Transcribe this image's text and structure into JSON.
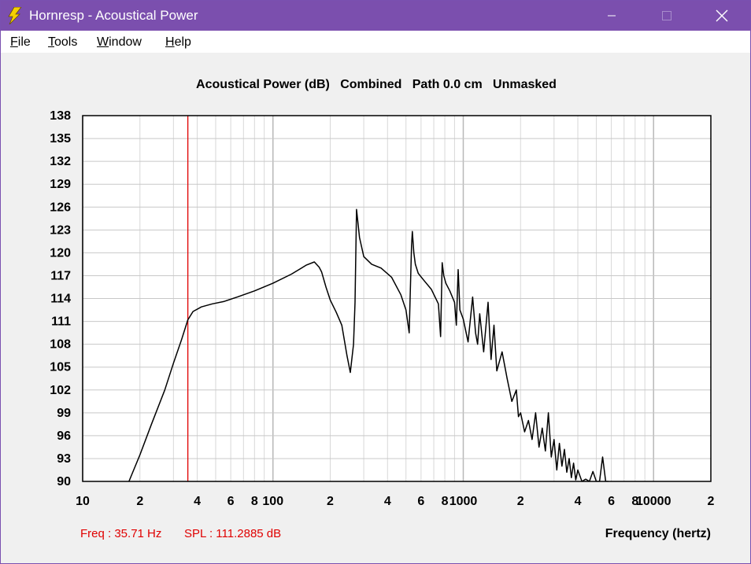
{
  "window": {
    "title": "Hornresp - Acoustical Power",
    "icon": "lightning-bolt-icon",
    "controls": [
      "minimize-icon",
      "maximize-icon",
      "close-icon"
    ]
  },
  "menu": [
    {
      "key": "F",
      "rest": "ile"
    },
    {
      "key": "T",
      "rest": "ools"
    },
    {
      "key": "W",
      "rest": "indow"
    },
    {
      "key": "H",
      "rest": "elp"
    }
  ],
  "chart_data": {
    "type": "line",
    "title": "Acoustical Power (dB)   Combined   Path 0.0 cm   Unmasked",
    "xlabel": "Frequency (hertz)",
    "ylabel": "",
    "x_scale": "log",
    "xlim": [
      10,
      20000
    ],
    "ylim": [
      90,
      138
    ],
    "x_ticks": [
      {
        "v": 10,
        "label": "10"
      },
      {
        "v": 20,
        "label": "2"
      },
      {
        "v": 40,
        "label": "4"
      },
      {
        "v": 60,
        "label": "6"
      },
      {
        "v": 80,
        "label": "8"
      },
      {
        "v": 100,
        "label": "100"
      },
      {
        "v": 200,
        "label": "2"
      },
      {
        "v": 400,
        "label": "4"
      },
      {
        "v": 600,
        "label": "6"
      },
      {
        "v": 800,
        "label": "8"
      },
      {
        "v": 1000,
        "label": "1000"
      },
      {
        "v": 2000,
        "label": "2"
      },
      {
        "v": 4000,
        "label": "4"
      },
      {
        "v": 6000,
        "label": "6"
      },
      {
        "v": 8000,
        "label": "8"
      },
      {
        "v": 10000,
        "label": "10000"
      },
      {
        "v": 20000,
        "label": "2"
      }
    ],
    "y_ticks": [
      138,
      135,
      132,
      129,
      126,
      123,
      120,
      117,
      114,
      111,
      108,
      105,
      102,
      99,
      96,
      93,
      90
    ],
    "grid": true,
    "cursor": {
      "x": 35.71,
      "color": "#e00000"
    },
    "series": [
      {
        "color": "#000000",
        "x": [
          17.5,
          20,
          23,
          27,
          30,
          33,
          35.71,
          38,
          42,
          48,
          55,
          65,
          80,
          100,
          125,
          150,
          165,
          175,
          180,
          190,
          200,
          215,
          230,
          245,
          255,
          265,
          270,
          275,
          285,
          300,
          330,
          370,
          420,
          470,
          500,
          520,
          535,
          540,
          550,
          560,
          580,
          620,
          680,
          740,
          760,
          775,
          790,
          810,
          850,
          900,
          920,
          940,
          960,
          1000,
          1060,
          1120,
          1160,
          1190,
          1220,
          1280,
          1350,
          1400,
          1450,
          1500,
          1600,
          1700,
          1800,
          1900,
          1950,
          2000,
          2100,
          2200,
          2300,
          2400,
          2500,
          2600,
          2700,
          2800,
          2900,
          3000,
          3100,
          3200,
          3300,
          3400,
          3500,
          3600,
          3700,
          3800,
          3900,
          4000,
          4200,
          4400,
          4600,
          4800,
          5000,
          5200,
          5400,
          5600,
          5800
        ],
        "values": [
          90,
          93.5,
          97.5,
          102,
          105.5,
          108.5,
          111.2,
          112.3,
          112.9,
          113.3,
          113.6,
          114.2,
          115,
          116,
          117.2,
          118.4,
          118.8,
          118.1,
          117.5,
          115.5,
          113.8,
          112.2,
          110.5,
          106.5,
          104.3,
          108,
          113.5,
          125.7,
          122,
          119.5,
          118.5,
          118,
          116.8,
          114.5,
          112.5,
          109.5,
          121,
          122.8,
          120,
          118.5,
          117.3,
          116.4,
          115.2,
          113.3,
          109,
          118.7,
          117,
          116,
          115,
          113.5,
          110.5,
          117.8,
          112.5,
          111.3,
          108.3,
          114.2,
          109.5,
          108,
          112,
          107,
          113.5,
          106,
          110.5,
          104.5,
          107,
          103.5,
          100.5,
          102,
          98.5,
          99,
          96.5,
          98,
          95.5,
          99,
          94.5,
          97,
          94,
          99,
          93.2,
          95.5,
          91.5,
          95,
          92,
          94.2,
          91.2,
          93,
          90.5,
          92.4,
          90.2,
          91.5,
          90,
          90.3,
          90,
          91.3,
          90,
          90,
          93.2,
          90,
          90
        ]
      }
    ]
  },
  "status": {
    "freq": "Freq : 35.71 Hz",
    "spl": "SPL : 111.2885 dB"
  }
}
